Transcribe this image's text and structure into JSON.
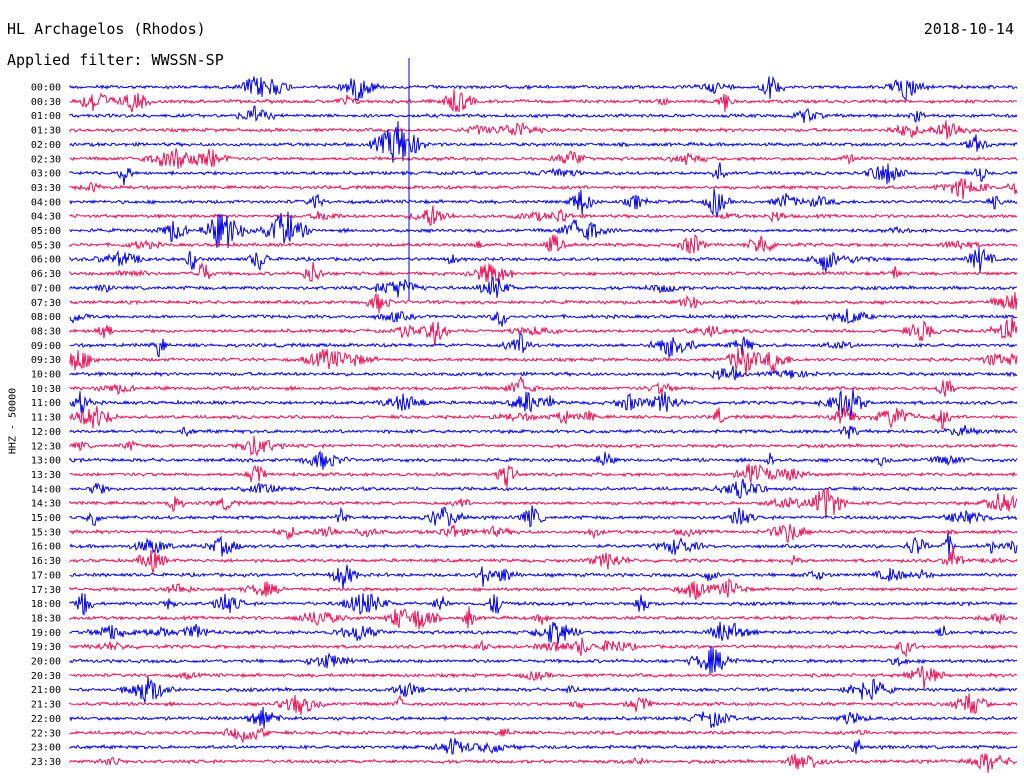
{
  "header": {
    "station": "HL Archagelos (Rhodos)",
    "filter": "Applied filter: WWSSN-SP",
    "date": "2018-10-14"
  },
  "chart_data": {
    "type": "line",
    "title": "HL Archagelos (Rhodos)",
    "ylabel": "HHZ - 50000",
    "traces": [
      "00:00",
      "00:30",
      "01:00",
      "01:30",
      "02:00",
      "02:30",
      "03:00",
      "03:30",
      "04:00",
      "04:30",
      "05:00",
      "05:30",
      "06:00",
      "06:30",
      "07:00",
      "07:30",
      "08:00",
      "08:30",
      "09:00",
      "09:30",
      "10:00",
      "10:30",
      "11:00",
      "11:30",
      "12:00",
      "12:30",
      "13:00",
      "13:30",
      "14:00",
      "14:30",
      "15:00",
      "15:30",
      "16:00",
      "16:30",
      "17:00",
      "17:30",
      "18:00",
      "18:30",
      "19:00",
      "19:30",
      "20:00",
      "20:30",
      "21:00",
      "21:30",
      "22:00",
      "22:30",
      "23:00",
      "23:30"
    ],
    "colors": {
      "even": "#0000ee",
      "odd": "#ee1155"
    },
    "note_xaxis": "none"
  }
}
